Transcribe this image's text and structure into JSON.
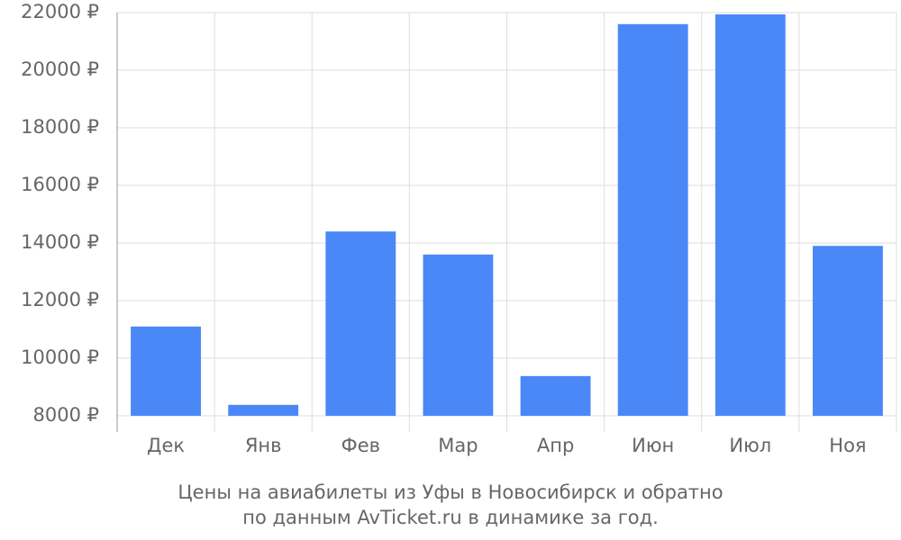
{
  "chart_data": {
    "type": "bar",
    "title": [
      "Цены на авиабилеты из Уфы в Новосибирск и обратно",
      "по данным AvTicket.ru в динамике за год."
    ],
    "categories": [
      "Дек",
      "Янв",
      "Фев",
      "Мар",
      "Апр",
      "Июн",
      "Июл",
      "Ноя"
    ],
    "values": [
      11100,
      8380,
      14400,
      13600,
      9380,
      21600,
      21940,
      13900
    ],
    "color": "#4a88f8",
    "ylim": [
      8000,
      22000
    ],
    "yticks": [
      {
        "value": 8000,
        "label": "8000 ₽"
      },
      {
        "value": 10000,
        "label": "10000 ₽"
      },
      {
        "value": 12000,
        "label": "12000 ₽"
      },
      {
        "value": 14000,
        "label": "14000 ₽"
      },
      {
        "value": 16000,
        "label": "16000 ₽"
      },
      {
        "value": 18000,
        "label": "18000 ₽"
      },
      {
        "value": 20000,
        "label": "20000 ₽"
      },
      {
        "value": 22000,
        "label": "22000 ₽"
      }
    ],
    "grid": true
  }
}
